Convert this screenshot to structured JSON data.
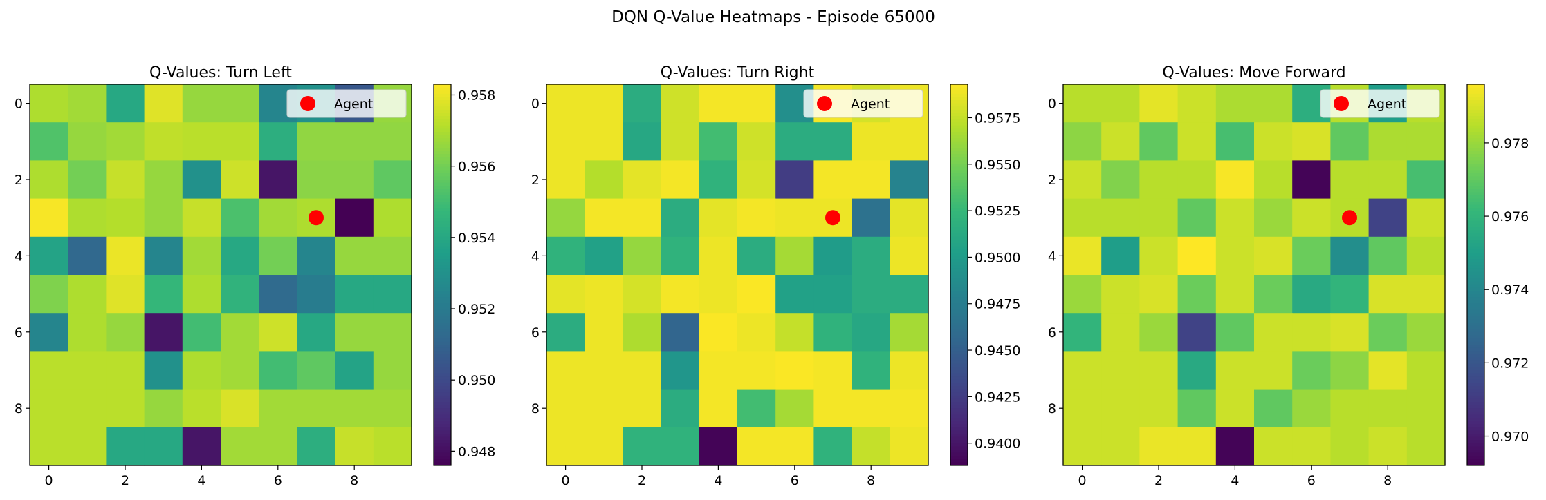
{
  "suptitle": "DQN Q-Value Heatmaps - Episode 65000",
  "colormap": [
    "#440154",
    "#482878",
    "#3e4989",
    "#31688e",
    "#26828e",
    "#1f9e89",
    "#35b779",
    "#6ece58",
    "#b5de2b",
    "#fde725"
  ],
  "agent_marker_color": "#ff0000",
  "chart_data": [
    {
      "type": "heatmap",
      "title": "Q-Values: Turn Left",
      "x_ticks": [
        0,
        2,
        4,
        6,
        8
      ],
      "y_ticks": [
        0,
        2,
        4,
        6,
        8
      ],
      "legend": {
        "label": "Agent",
        "placement": "upper right"
      },
      "agent": {
        "row": 3,
        "col": 7
      },
      "colorbar": {
        "vmin": 0.9476,
        "vmax": 0.9583,
        "ticks": [
          "0.948",
          "0.950",
          "0.952",
          "0.954",
          "0.956",
          "0.958"
        ],
        "tick_values": [
          0.948,
          0.95,
          0.952,
          0.954,
          0.956,
          0.958
        ]
      },
      "values": [
        [
          0.957,
          0.9568,
          0.954,
          0.9578,
          0.9566,
          0.9566,
          0.9525,
          0.953,
          0.9505,
          0.9566
        ],
        [
          0.9553,
          0.9566,
          0.9568,
          0.9573,
          0.9572,
          0.9572,
          0.9543,
          0.9565,
          0.9565,
          0.9565
        ],
        [
          0.957,
          0.956,
          0.9574,
          0.9566,
          0.953,
          0.9575,
          0.9482,
          0.9564,
          0.9564,
          0.9556
        ],
        [
          0.9582,
          0.957,
          0.9571,
          0.9566,
          0.9574,
          0.9552,
          0.9568,
          0.957,
          0.9476,
          0.957
        ],
        [
          0.9538,
          0.9512,
          0.958,
          0.9525,
          0.9568,
          0.954,
          0.956,
          0.9525,
          0.9566,
          0.9566
        ],
        [
          0.9562,
          0.957,
          0.9578,
          0.9547,
          0.957,
          0.9545,
          0.9513,
          0.9521,
          0.954,
          0.954
        ],
        [
          0.9525,
          0.957,
          0.9566,
          0.9482,
          0.955,
          0.9568,
          0.9575,
          0.954,
          0.9566,
          0.9566
        ],
        [
          0.9572,
          0.9572,
          0.9572,
          0.953,
          0.957,
          0.9568,
          0.955,
          0.9556,
          0.9538,
          0.9566
        ],
        [
          0.9572,
          0.9572,
          0.9572,
          0.9566,
          0.9572,
          0.9577,
          0.9568,
          0.9568,
          0.9568,
          0.9568
        ],
        [
          0.9572,
          0.9572,
          0.954,
          0.954,
          0.9482,
          0.9568,
          0.9568,
          0.9543,
          0.9574,
          0.9572
        ]
      ]
    },
    {
      "type": "heatmap",
      "title": "Q-Values: Turn Right",
      "x_ticks": [
        0,
        2,
        4,
        6,
        8
      ],
      "y_ticks": [
        0,
        2,
        4,
        6,
        8
      ],
      "legend": {
        "label": "Agent",
        "placement": "upper right"
      },
      "agent": {
        "row": 3,
        "col": 7
      },
      "colorbar": {
        "vmin": 0.9388,
        "vmax": 0.9593,
        "ticks": [
          "0.9400",
          "0.9425",
          "0.9450",
          "0.9475",
          "0.9500",
          "0.9525",
          "0.9550",
          "0.9575"
        ],
        "tick_values": [
          0.94,
          0.9425,
          0.945,
          0.9475,
          0.95,
          0.9525,
          0.955,
          0.9575
        ]
      },
      "values": [
        [
          0.9588,
          0.9588,
          0.9515,
          0.9578,
          0.959,
          0.959,
          0.949,
          0.959,
          0.958,
          0.9588
        ],
        [
          0.9588,
          0.9588,
          0.951,
          0.9578,
          0.953,
          0.9578,
          0.9515,
          0.9515,
          0.9588,
          0.9588
        ],
        [
          0.9588,
          0.957,
          0.9585,
          0.959,
          0.952,
          0.958,
          0.9425,
          0.959,
          0.959,
          0.948
        ],
        [
          0.956,
          0.959,
          0.959,
          0.9515,
          0.9585,
          0.959,
          0.9588,
          0.9588,
          0.9465,
          0.9585
        ],
        [
          0.952,
          0.9505,
          0.956,
          0.952,
          0.9588,
          0.9515,
          0.9565,
          0.95,
          0.9515,
          0.9588
        ],
        [
          0.9585,
          0.9588,
          0.958,
          0.959,
          0.9588,
          0.9592,
          0.9505,
          0.9505,
          0.9515,
          0.9515
        ],
        [
          0.9515,
          0.9588,
          0.9568,
          0.9455,
          0.9592,
          0.9588,
          0.9575,
          0.952,
          0.951,
          0.9565
        ],
        [
          0.9588,
          0.9588,
          0.9588,
          0.9495,
          0.959,
          0.959,
          0.9592,
          0.959,
          0.952,
          0.9588
        ],
        [
          0.9588,
          0.9588,
          0.9588,
          0.9515,
          0.959,
          0.953,
          0.9565,
          0.959,
          0.959,
          0.959
        ],
        [
          0.9588,
          0.9588,
          0.952,
          0.952,
          0.939,
          0.959,
          0.959,
          0.952,
          0.9575,
          0.9588
        ]
      ]
    },
    {
      "type": "heatmap",
      "title": "Q-Values: Move Forward",
      "x_ticks": [
        0,
        2,
        4,
        6,
        8
      ],
      "y_ticks": [
        0,
        2,
        4,
        6,
        8
      ],
      "legend": {
        "label": "Agent",
        "placement": "upper right"
      },
      "agent": {
        "row": 3,
        "col": 7
      },
      "colorbar": {
        "vmin": 0.9692,
        "vmax": 0.9796,
        "ticks": [
          "0.970",
          "0.972",
          "0.974",
          "0.976",
          "0.978"
        ],
        "tick_values": [
          0.97,
          0.972,
          0.974,
          0.976,
          0.978
        ]
      },
      "values": [
        [
          0.9785,
          0.9785,
          0.9792,
          0.9788,
          0.9783,
          0.9783,
          0.9757,
          0.9785,
          0.975,
          0.9785
        ],
        [
          0.9778,
          0.9788,
          0.977,
          0.9788,
          0.9765,
          0.9788,
          0.979,
          0.977,
          0.9783,
          0.9783
        ],
        [
          0.9788,
          0.9776,
          0.9785,
          0.9785,
          0.9795,
          0.9785,
          0.9693,
          0.9785,
          0.9785,
          0.9765
        ],
        [
          0.9785,
          0.9785,
          0.9785,
          0.977,
          0.9788,
          0.978,
          0.9788,
          0.9785,
          0.9713,
          0.9788
        ],
        [
          0.9793,
          0.975,
          0.9788,
          0.9796,
          0.9788,
          0.979,
          0.9772,
          0.9743,
          0.977,
          0.9785
        ],
        [
          0.978,
          0.9788,
          0.979,
          0.9772,
          0.9788,
          0.9772,
          0.9755,
          0.976,
          0.979,
          0.979
        ],
        [
          0.976,
          0.9788,
          0.978,
          0.9713,
          0.977,
          0.9788,
          0.9788,
          0.979,
          0.9772,
          0.978
        ],
        [
          0.9788,
          0.9788,
          0.9788,
          0.9755,
          0.9788,
          0.9788,
          0.9772,
          0.9778,
          0.9792,
          0.9785
        ],
        [
          0.9788,
          0.9788,
          0.9788,
          0.977,
          0.9788,
          0.977,
          0.978,
          0.9785,
          0.9785,
          0.9785
        ],
        [
          0.9788,
          0.9788,
          0.9793,
          0.9793,
          0.9693,
          0.9788,
          0.9788,
          0.9785,
          0.9788,
          0.9785
        ]
      ]
    }
  ]
}
